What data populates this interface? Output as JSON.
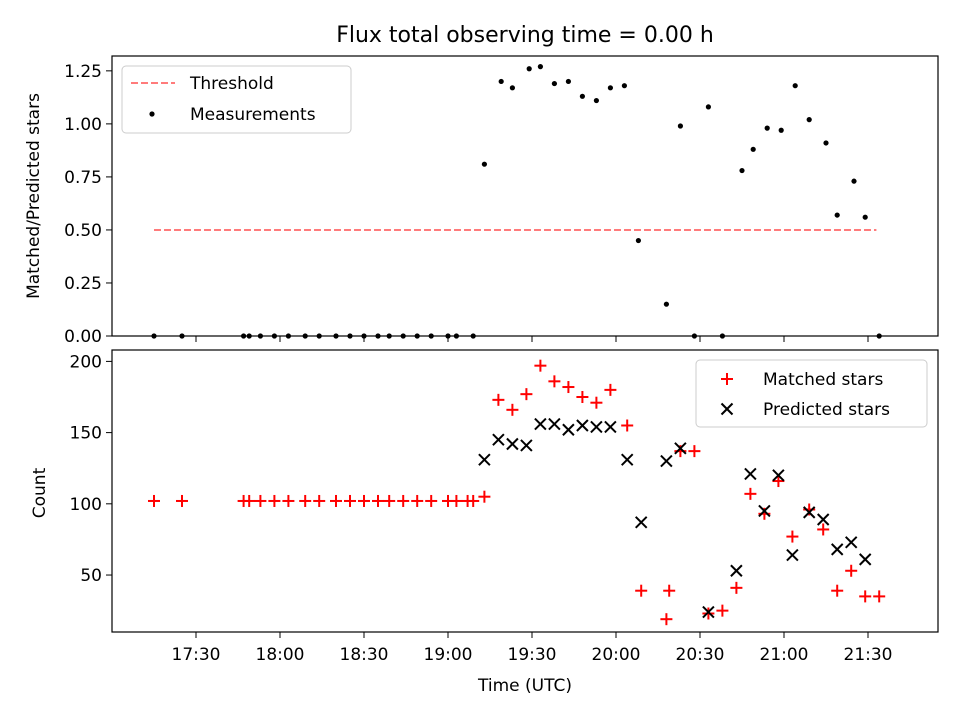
{
  "chart_data": [
    {
      "type": "scatter",
      "title": "Flux total observing time = 0.00 h",
      "xlabel": "",
      "ylabel": "Matched/Predicted stars",
      "ylim": [
        0,
        1.32
      ],
      "xlim": [
        "17:00",
        "21:55"
      ],
      "yticks": [
        "0.00",
        "0.25",
        "0.50",
        "0.75",
        "1.00",
        "1.25"
      ],
      "legend_position": "top-left",
      "grid": false,
      "series": [
        {
          "name": "Threshold",
          "kind": "dashed-line",
          "color": "#ff7b7b",
          "x": [
            "17:15",
            "21:33"
          ],
          "y": [
            0.5,
            0.5
          ]
        },
        {
          "name": "Measurements",
          "kind": "points",
          "color": "#000000",
          "x": [
            "17:15",
            "17:25",
            "17:47",
            "17:49",
            "17:53",
            "17:58",
            "18:03",
            "18:09",
            "18:14",
            "18:20",
            "18:25",
            "18:30",
            "18:35",
            "18:39",
            "18:44",
            "18:49",
            "18:54",
            "19:00",
            "19:03",
            "19:09",
            "19:13",
            "19:19",
            "19:23",
            "19:29",
            "19:33",
            "19:38",
            "19:43",
            "19:48",
            "19:53",
            "19:58",
            "20:03",
            "20:08",
            "20:18",
            "20:23",
            "20:28",
            "20:33",
            "20:38",
            "20:45",
            "20:49",
            "20:54",
            "20:59",
            "21:04",
            "21:09",
            "21:15",
            "21:19",
            "21:25",
            "21:29",
            "21:34"
          ],
          "y": [
            0,
            0,
            0,
            0,
            0,
            0,
            0,
            0,
            0,
            0,
            0,
            0,
            0,
            0,
            0,
            0,
            0,
            0,
            0,
            0,
            0.81,
            1.2,
            1.17,
            1.26,
            1.27,
            1.19,
            1.2,
            1.13,
            1.11,
            1.17,
            1.18,
            0.45,
            0.15,
            0.99,
            0,
            1.08,
            0,
            0.78,
            0.88,
            0.98,
            0.97,
            1.18,
            1.02,
            0.91,
            0.57,
            0.73,
            0.56,
            0
          ]
        }
      ]
    },
    {
      "type": "scatter",
      "title": "",
      "xlabel": "Time (UTC)",
      "ylabel": "Count",
      "ylim": [
        10,
        208
      ],
      "xlim": [
        "17:00",
        "21:55"
      ],
      "xticks": [
        "17:30",
        "18:00",
        "18:30",
        "19:00",
        "19:30",
        "20:00",
        "20:30",
        "21:00",
        "21:30"
      ],
      "yticks": [
        "50",
        "100",
        "150",
        "200"
      ],
      "legend_position": "top-right",
      "grid": false,
      "series": [
        {
          "name": "Matched stars",
          "marker": "plus",
          "color": "#ff0000",
          "x": [
            "17:15",
            "17:25",
            "17:47",
            "17:49",
            "17:53",
            "17:58",
            "18:03",
            "18:09",
            "18:14",
            "18:20",
            "18:25",
            "18:30",
            "18:35",
            "18:39",
            "18:44",
            "18:49",
            "18:54",
            "19:00",
            "19:03",
            "19:07",
            "19:09",
            "19:13",
            "19:18",
            "19:23",
            "19:28",
            "19:33",
            "19:38",
            "19:43",
            "19:48",
            "19:53",
            "19:58",
            "20:04",
            "20:09",
            "20:18",
            "20:19",
            "20:23",
            "20:28",
            "20:33",
            "20:38",
            "20:43",
            "20:48",
            "20:53",
            "20:58",
            "21:03",
            "21:09",
            "21:14",
            "21:19",
            "21:24",
            "21:29",
            "21:34"
          ],
          "y": [
            102,
            102,
            102,
            102,
            102,
            102,
            102,
            102,
            102,
            102,
            102,
            102,
            102,
            102,
            102,
            102,
            102,
            102,
            102,
            102,
            102,
            105,
            173,
            166,
            177,
            197,
            186,
            182,
            175,
            171,
            180,
            155,
            39,
            19,
            39,
            137,
            137,
            23,
            25,
            41,
            107,
            93,
            116,
            77,
            96,
            82,
            39,
            53,
            35,
            35
          ]
        },
        {
          "name": "Predicted stars",
          "marker": "x",
          "color": "#000000",
          "x": [
            "19:13",
            "19:18",
            "19:23",
            "19:28",
            "19:33",
            "19:38",
            "19:43",
            "19:48",
            "19:53",
            "19:58",
            "20:04",
            "20:09",
            "20:18",
            "20:23",
            "20:33",
            "20:43",
            "20:48",
            "20:53",
            "20:58",
            "21:03",
            "21:09",
            "21:14",
            "21:19",
            "21:24",
            "21:29"
          ],
          "y": [
            131,
            145,
            142,
            141,
            156,
            156,
            152,
            155,
            154,
            154,
            131,
            87,
            130,
            139,
            24,
            53,
            121,
            95,
            120,
            64,
            94,
            89,
            68,
            73,
            61
          ]
        }
      ]
    }
  ]
}
